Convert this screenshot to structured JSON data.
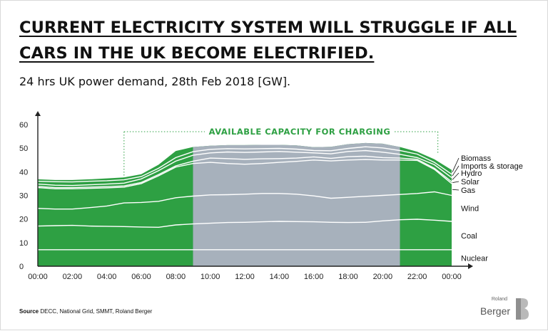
{
  "header": {
    "title_line1": "CURRENT ELECTRICITY SYSTEM WILL STRUGGLE IF ALL",
    "title_line2": "CARS IN THE UK BECOME ELECTRIFIED.",
    "subtitle": "24 hrs UK power demand, 28th Feb 2018 [GW]."
  },
  "footer": {
    "source_label": "Source",
    "source_text": "DECC, National Grid, SMMT, Roland Berger"
  },
  "logo": {
    "small": "Roland",
    "name": "Berger"
  },
  "colors": {
    "green": "#2ea043",
    "gray_band": "#a7b1bc",
    "line": "#ffffff",
    "annotation": "#2ea043"
  },
  "chart_data": {
    "type": "area",
    "title": "",
    "xlabel": "",
    "ylabel": "",
    "ylim": [
      0,
      60
    ],
    "yticks": [
      0,
      10,
      20,
      30,
      40,
      50,
      60
    ],
    "xlim": [
      0,
      24
    ],
    "xticks": [
      "00:00",
      "02:00",
      "04:00",
      "06:00",
      "08:00",
      "10:00",
      "12:00",
      "14:00",
      "16:00",
      "18:00",
      "20:00",
      "22:00",
      "00:00"
    ],
    "x": [
      0,
      1,
      2,
      3,
      4,
      5,
      6,
      7,
      8,
      9,
      10,
      11,
      12,
      13,
      14,
      15,
      16,
      17,
      18,
      19,
      20,
      21,
      22,
      23,
      24
    ],
    "highlight": {
      "label": "",
      "from": 9,
      "to": 21
    },
    "annotation": {
      "text": "AVAILABLE CAPACITY FOR CHARGING",
      "from": 5,
      "to": 23.2,
      "level": 57
    },
    "series": [
      {
        "name": "Nuclear",
        "cumulative": [
          7,
          7,
          7,
          7,
          7,
          7,
          7,
          7,
          7,
          7,
          7,
          7,
          7,
          7,
          7,
          7,
          7,
          7,
          7,
          7,
          7,
          7,
          7,
          7,
          7
        ]
      },
      {
        "name": "Coal",
        "cumulative": [
          17,
          17.2,
          17.3,
          17,
          16.9,
          16.8,
          16.6,
          16.5,
          17.5,
          17.9,
          18.2,
          18.5,
          18.6,
          18.8,
          19,
          18.9,
          18.8,
          18.6,
          18.5,
          18.6,
          19.2,
          19.7,
          19.9,
          19.5,
          19
        ]
      },
      {
        "name": "Wind",
        "cumulative": [
          24.5,
          24.2,
          24.2,
          24.8,
          25.5,
          26.8,
          27,
          27.5,
          29,
          29.7,
          30.2,
          30.3,
          30.5,
          30.8,
          30.8,
          30.5,
          29.8,
          28.8,
          29.2,
          29.6,
          30,
          30.4,
          30.8,
          31.5,
          30
        ]
      },
      {
        "name": "Gas",
        "cumulative": [
          33.3,
          32.8,
          32.8,
          33,
          33.2,
          33.5,
          35,
          38.3,
          42,
          43.5,
          44,
          43.5,
          43.2,
          43.5,
          44,
          44.4,
          45,
          44.6,
          45,
          45.2,
          45,
          45,
          44.8,
          41,
          35
        ]
      },
      {
        "name": "Solar",
        "cumulative": [
          33.8,
          33.3,
          33.3,
          33.5,
          33.7,
          34,
          35.5,
          38.8,
          42.5,
          44.5,
          45.8,
          45.6,
          45.3,
          45.5,
          45.6,
          45.8,
          46.3,
          45.7,
          46.4,
          46.6,
          46,
          45.8,
          45.3,
          41.5,
          35.8
        ]
      },
      {
        "name": "Hydro",
        "cumulative": [
          34.8,
          34.3,
          34.2,
          34.5,
          34.8,
          35.2,
          37,
          40.5,
          44.5,
          47,
          48,
          48.4,
          48.2,
          48.4,
          48.6,
          48.3,
          48,
          47.6,
          48.6,
          49,
          48.3,
          47.4,
          46,
          43,
          37.5
        ]
      },
      {
        "name": "Imports & storage",
        "cumulative": [
          36,
          35.8,
          35.7,
          36,
          36.2,
          36.6,
          38,
          41.5,
          46,
          48.5,
          49.5,
          49.8,
          49.7,
          49.8,
          49.9,
          49.6,
          49,
          48.9,
          49.9,
          50.6,
          50.1,
          49,
          47.5,
          44,
          39
        ]
      },
      {
        "name": "Biomass",
        "cumulative": [
          36.8,
          36.5,
          36.5,
          36.8,
          37.2,
          37.6,
          39,
          43,
          48.8,
          50.5,
          51,
          51.3,
          51.3,
          51.4,
          51.4,
          51.2,
          50.4,
          50.6,
          51.7,
          52.2,
          51.9,
          50.5,
          48.5,
          45.3,
          40.8
        ]
      }
    ]
  }
}
